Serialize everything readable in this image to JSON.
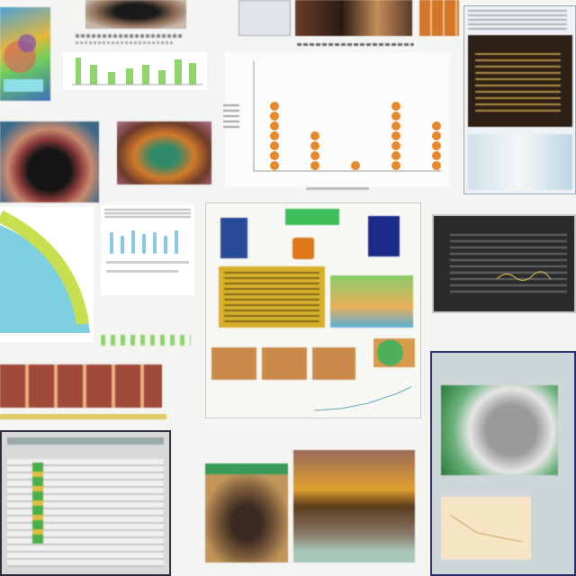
{
  "page": {
    "title": ""
  },
  "captions": {
    "top_left": "",
    "chart_title": "",
    "chart_caption": "",
    "green_chart": "",
    "right_text": ""
  },
  "chart_data": {
    "type": "scatter",
    "categories": [
      "",
      "",
      "",
      "",
      "",
      "",
      "",
      ""
    ],
    "series": [
      {
        "values": [
          7,
          4,
          1,
          7,
          5
        ]
      }
    ],
    "ylim": [
      0,
      8
    ]
  }
}
